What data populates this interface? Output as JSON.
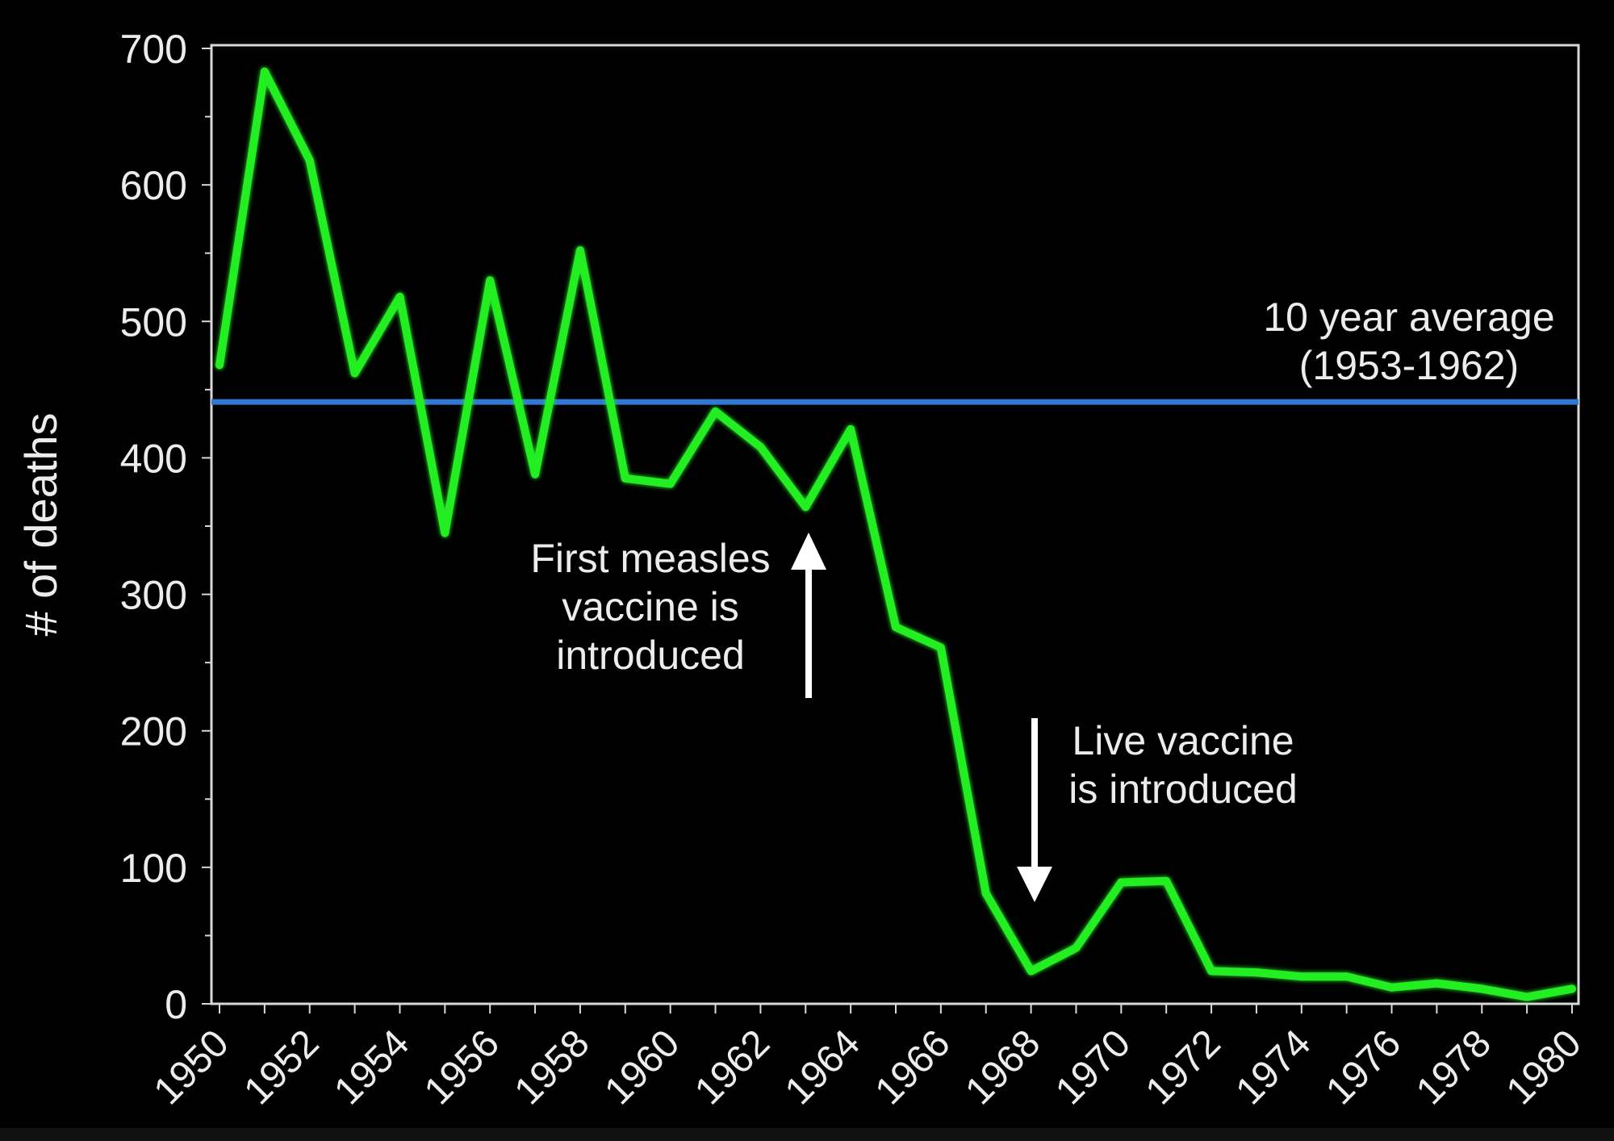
{
  "chart_data": {
    "type": "line",
    "ylabel": "# of deaths",
    "xlabel": "",
    "ylim": [
      0,
      700
    ],
    "xlim": [
      1950,
      1980
    ],
    "yticks": [
      "0",
      "100",
      "200",
      "300",
      "400",
      "500",
      "600",
      "700"
    ],
    "xticks": [
      "1950",
      "1952",
      "1954",
      "1956",
      "1958",
      "1960",
      "1962",
      "1964",
      "1966",
      "1968",
      "1970",
      "1972",
      "1974",
      "1976",
      "1978",
      "1980"
    ],
    "grid": false,
    "series": [
      {
        "color": "#22ee22",
        "x": [
          1950,
          1951,
          1952,
          1953,
          1954,
          1955,
          1956,
          1957,
          1958,
          1959,
          1960,
          1961,
          1962,
          1963,
          1964,
          1965,
          1966,
          1967,
          1968,
          1969,
          1970,
          1971,
          1972,
          1973,
          1974,
          1975,
          1976,
          1977,
          1978,
          1979,
          1980
        ],
        "values": [
          468,
          683,
          618,
          462,
          518,
          345,
          530,
          388,
          552,
          385,
          381,
          434,
          408,
          364,
          421,
          276,
          261,
          81,
          24,
          41,
          89,
          90,
          24,
          23,
          20,
          20,
          12,
          15,
          11,
          5,
          11
        ]
      }
    ],
    "reference_line": {
      "value": 441,
      "color": "#2f78d4",
      "label_lines": [
        "10 year average",
        "(1953-1962)"
      ]
    },
    "annotations": [
      {
        "id": "first-vaccine",
        "year": 1963,
        "arrow": "up",
        "lines": [
          "First measles",
          "vaccine is",
          "introduced"
        ]
      },
      {
        "id": "live-vaccine",
        "year": 1968,
        "arrow": "down",
        "lines": [
          "Live vaccine",
          "is introduced"
        ]
      }
    ]
  }
}
